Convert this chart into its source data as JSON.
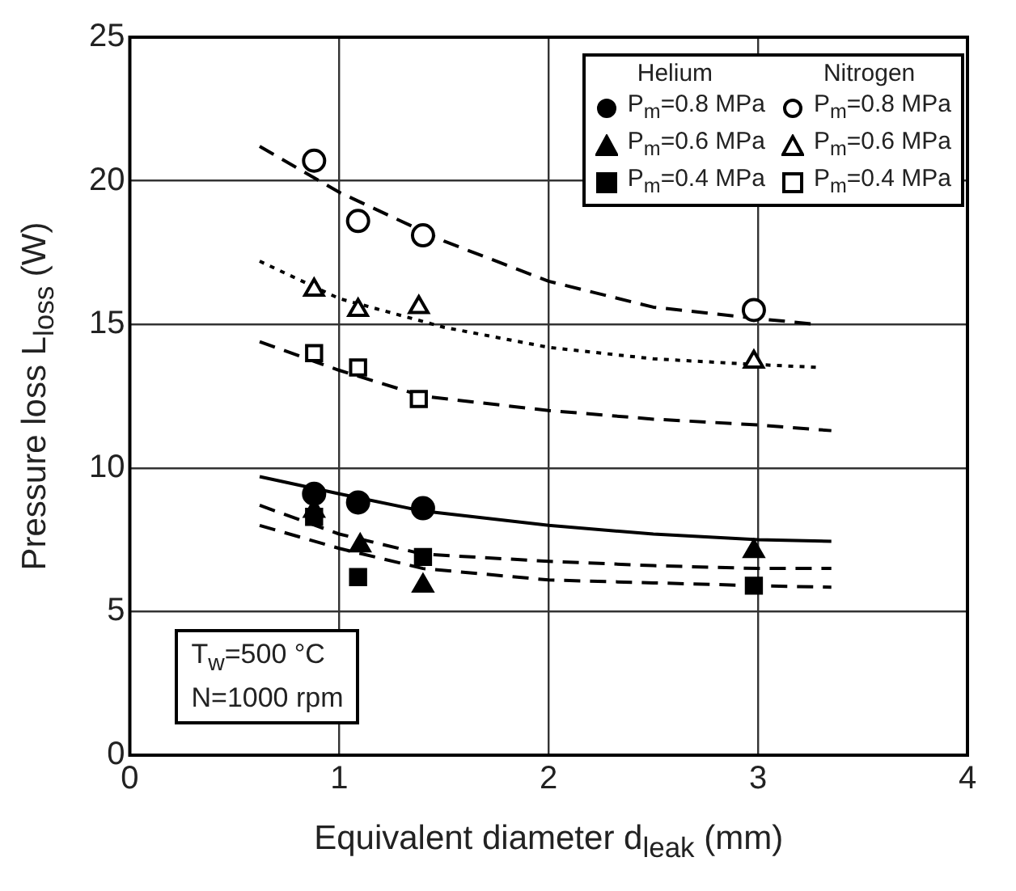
{
  "chart_data": {
    "type": "scatter",
    "xlabel": "Equivalent diameter  d$_{leak}$ (mm)",
    "ylabel": "Pressure loss  L$_{loss}$ (W)",
    "xlim": [
      0,
      4
    ],
    "ylim": [
      0,
      25
    ],
    "xticks": [
      0,
      1,
      2,
      3,
      4
    ],
    "yticks": [
      0,
      5,
      10,
      15,
      20,
      25
    ],
    "grid": true,
    "legend": "top right",
    "annotations": [
      "Helium",
      "Nitrogen",
      "T$_{w}$=500 °C",
      "N=1000 rpm"
    ],
    "series": [
      {
        "name": "P$_{m}$=0.8 MPa",
        "marker": "circle",
        "color": "#000000",
        "x": [
          0.88,
          1.09,
          1.4
        ],
        "values": [
          9.1,
          8.8,
          8.6
        ]
      },
      {
        "name": "P$_{m}$=0.6 MPa",
        "marker": "triangle",
        "color": "#000000",
        "x": [
          0.88,
          1.1,
          1.4,
          2.98
        ],
        "values": [
          8.5,
          7.3,
          5.9,
          7.1
        ]
      },
      {
        "name": "P$_{m}$=0.4 MPa",
        "marker": "square",
        "color": "#000000",
        "x": [
          0.88,
          1.09,
          1.4,
          2.98
        ],
        "values": [
          8.3,
          6.2,
          6.9,
          5.9
        ]
      },
      {
        "name": "P$_{m}$=0.8 MPa",
        "marker": "circle",
        "color": "#000000",
        "x": [
          0.88,
          1.09,
          1.4,
          2.98
        ],
        "values": [
          20.7,
          18.6,
          18.1,
          15.5
        ]
      },
      {
        "name": "P$_{m}$=0.6 MPa",
        "marker": "triangle",
        "color": "#000000",
        "x": [
          0.88,
          1.09,
          1.38,
          2.98
        ],
        "values": [
          16.2,
          15.5,
          15.6,
          13.7
        ]
      },
      {
        "name": "P$_{m}$=0.4 MPa",
        "marker": "square",
        "color": "#000000",
        "x": [
          0.88,
          1.09,
          1.38
        ],
        "values": [
          14.0,
          13.5,
          12.4
        ]
      },
      {
        "type": "line",
        "marker": "none",
        "line_style": "solid",
        "color": "#000000",
        "x": [
          0.62,
          1.0,
          1.4,
          2.0,
          2.5,
          3.0,
          3.35
        ],
        "values": [
          9.7,
          9.1,
          8.5,
          8.0,
          7.7,
          7.5,
          7.45
        ]
      },
      {
        "type": "line",
        "marker": "none",
        "line_style": "dashed",
        "color": "#000000",
        "x": [
          0.62,
          1.0,
          1.4,
          2.0,
          2.5,
          3.0,
          3.35
        ],
        "values": [
          8.7,
          7.7,
          7.0,
          6.75,
          6.6,
          6.5,
          6.5
        ]
      },
      {
        "type": "line",
        "marker": "none",
        "line_style": "dashed",
        "color": "#000000",
        "x": [
          0.62,
          1.0,
          1.4,
          2.0,
          2.5,
          3.0,
          3.35
        ],
        "values": [
          8.0,
          7.2,
          6.5,
          6.1,
          6.0,
          5.9,
          5.85
        ]
      },
      {
        "type": "line",
        "marker": "none",
        "line_style": "dashed",
        "color": "#000000",
        "x": [
          0.62,
          1.0,
          1.5,
          2.0,
          2.5,
          3.0,
          3.28
        ],
        "values": [
          21.2,
          19.6,
          17.9,
          16.5,
          15.6,
          15.2,
          15.0
        ]
      },
      {
        "type": "line",
        "marker": "none",
        "line_style": "dotted",
        "color": "#000000",
        "x": [
          0.62,
          1.0,
          1.5,
          2.0,
          2.5,
          3.0,
          3.3
        ],
        "values": [
          17.2,
          15.9,
          14.9,
          14.2,
          13.8,
          13.6,
          13.5
        ]
      },
      {
        "type": "line",
        "marker": "none",
        "line_style": "dashed",
        "color": "#000000",
        "x": [
          0.62,
          1.0,
          1.4,
          2.0,
          2.5,
          3.0,
          3.35
        ],
        "values": [
          14.4,
          13.4,
          12.5,
          12.0,
          11.7,
          11.5,
          11.3
        ]
      }
    ]
  }
}
